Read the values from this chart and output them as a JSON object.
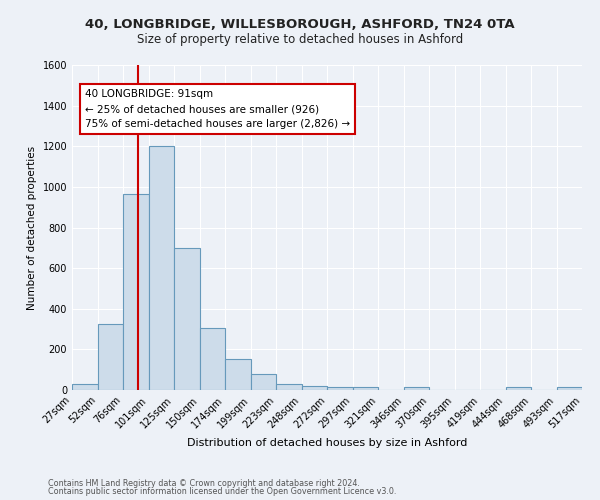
{
  "title1": "40, LONGBRIDGE, WILLESBOROUGH, ASHFORD, TN24 0TA",
  "title2": "Size of property relative to detached houses in Ashford",
  "xlabel": "Distribution of detached houses by size in Ashford",
  "ylabel": "Number of detached properties",
  "footnote1": "Contains HM Land Registry data © Crown copyright and database right 2024.",
  "footnote2": "Contains public sector information licensed under the Open Government Licence v3.0.",
  "annotation_line1": "40 LONGBRIDGE: 91sqm",
  "annotation_line2": "← 25% of detached houses are smaller (926)",
  "annotation_line3": "75% of semi-detached houses are larger (2,826) →",
  "bar_values": [
    30,
    325,
    965,
    1200,
    700,
    305,
    155,
    80,
    30,
    18,
    15,
    15,
    0,
    15,
    0,
    0,
    0,
    15,
    0,
    15
  ],
  "categories": [
    "27sqm",
    "52sqm",
    "76sqm",
    "101sqm",
    "125sqm",
    "150sqm",
    "174sqm",
    "199sqm",
    "223sqm",
    "248sqm",
    "272sqm",
    "297sqm",
    "321sqm",
    "346sqm",
    "370sqm",
    "395sqm",
    "419sqm",
    "444sqm",
    "468sqm",
    "493sqm",
    "517sqm"
  ],
  "bar_color": "#cddcea",
  "bar_edge_color": "#6699bb",
  "vline_color": "#cc0000",
  "ylim": [
    0,
    1600
  ],
  "yticks": [
    0,
    200,
    400,
    600,
    800,
    1000,
    1200,
    1400,
    1600
  ],
  "annotation_box_color": "#ffffff",
  "annotation_box_edge": "#cc0000",
  "bg_color": "#edf1f7",
  "grid_color": "#ffffff",
  "title1_fontsize": 9.5,
  "title2_fontsize": 8.5,
  "xlabel_fontsize": 8.0,
  "ylabel_fontsize": 7.5,
  "tick_fontsize": 7.0,
  "annot_fontsize": 7.5,
  "footnote_fontsize": 5.8
}
